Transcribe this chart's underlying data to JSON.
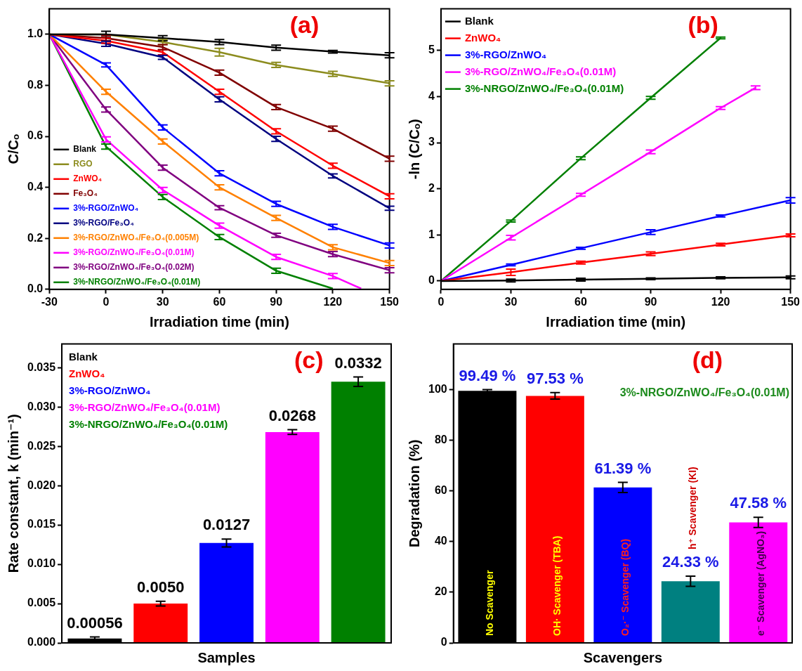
{
  "chart_data": [
    {
      "type": "line",
      "title": "(a)",
      "xlabel": "Irradiation time (min)",
      "ylabel": "C/Cₒ",
      "x": [
        -30,
        0,
        30,
        60,
        90,
        120,
        150
      ],
      "xlim": [
        -30,
        150
      ],
      "xticks": [
        -30,
        0,
        30,
        60,
        90,
        120,
        150
      ],
      "ylim": [
        0,
        1.1
      ],
      "yticks": [
        {
          "value": 0,
          "label": "0.0"
        },
        {
          "value": 0.2,
          "label": "0.2"
        },
        {
          "value": 0.4,
          "label": "0.4"
        },
        {
          "value": 0.6,
          "label": "0.6"
        },
        {
          "value": 0.8,
          "label": "0.8"
        },
        {
          "value": 1,
          "label": "1.0"
        }
      ],
      "legend": "bottom left",
      "series": [
        {
          "name": "Blank",
          "color": "#000000",
          "values": [
            1,
            1.0,
            0.985,
            0.97,
            0.948,
            0.932,
            0.918
          ],
          "errors": [
            null,
            0.012,
            0.01,
            0.01,
            0.01,
            0.005,
            0.01
          ]
        },
        {
          "name": "RGO",
          "color": "#8c8c1e",
          "values": [
            1,
            1.0,
            0.97,
            0.93,
            0.88,
            0.845,
            0.808
          ],
          "errors": [
            null,
            null,
            0.01,
            0.015,
            0.01,
            0.01,
            0.01
          ]
        },
        {
          "name": "ZnWO₄",
          "color": "#ff0000",
          "values": [
            1,
            0.975,
            0.93,
            0.775,
            0.62,
            0.485,
            0.365
          ],
          "errors": [
            null,
            0.01,
            0.01,
            0.01,
            0.01,
            0.01,
            0.01
          ]
        },
        {
          "name": "Fe₃O₄",
          "color": "#800000",
          "values": [
            1,
            0.985,
            0.95,
            0.85,
            0.715,
            0.63,
            0.512
          ],
          "errors": [
            null,
            0.01,
            0.01,
            0.01,
            0.01,
            0.01,
            0.01
          ]
        },
        {
          "name": "3%-RGO/ZnWO₄",
          "color": "#0000ff",
          "values": [
            1,
            0.88,
            0.635,
            0.455,
            0.335,
            0.245,
            0.172
          ],
          "errors": [
            null,
            0.008,
            0.01,
            0.01,
            0.01,
            0.01,
            0.01
          ]
        },
        {
          "name": "3%-RGO/Fe₃O₄",
          "color": "#000080",
          "values": [
            1,
            0.963,
            0.91,
            0.745,
            0.59,
            0.445,
            0.318
          ],
          "errors": [
            null,
            0.01,
            0.008,
            0.01,
            0.01,
            0.008,
            0.008
          ]
        },
        {
          "name": "3%-RGO/ZnWO₄/Fe₃O₄(0.005M)",
          "color": "#ff8000",
          "values": [
            1,
            0.775,
            0.58,
            0.4,
            0.28,
            0.165,
            0.103
          ],
          "errors": [
            null,
            0.01,
            0.01,
            0.01,
            0.01,
            0.01,
            0.01
          ]
        },
        {
          "name": "3%-RGO/ZnWO₄/Fe₃O₄(0.01M)",
          "color": "#ff00ff",
          "x": [
            -30,
            0,
            30,
            60,
            90,
            120,
            135
          ],
          "values": [
            1,
            0.588,
            0.39,
            0.25,
            0.127,
            0.052,
            0.003
          ],
          "errors": [
            null,
            0.01,
            0.01,
            0.01,
            0.01,
            0.01,
            null
          ]
        },
        {
          "name": "3%-RGO/ZnWO₄/Fe₃O₄(0.02M)",
          "color": "#800080",
          "values": [
            1,
            0.705,
            0.477,
            0.32,
            0.212,
            0.138,
            0.075
          ],
          "errors": [
            null,
            0.01,
            0.01,
            0.008,
            0.008,
            0.01,
            0.01
          ]
        },
        {
          "name": "3%-NRGO/ZnWO₄/Fe₃O₄(0.01M)",
          "color": "#008000",
          "x": [
            -30,
            0,
            30,
            60,
            90,
            120
          ],
          "values": [
            1,
            0.56,
            0.362,
            0.205,
            0.073,
            0.003
          ],
          "errors": [
            null,
            0.01,
            0.01,
            0.01,
            0.01,
            null
          ]
        }
      ]
    },
    {
      "type": "line",
      "title": "(b)",
      "xlabel": "Irradiation time (min)",
      "ylabel": "-ln (C/Cₒ)",
      "x": [
        0,
        30,
        60,
        90,
        120,
        150
      ],
      "xlim": [
        0,
        150
      ],
      "xticks": [
        0,
        30,
        60,
        90,
        120,
        150
      ],
      "ylim": [
        -0.18,
        5.9
      ],
      "yticks": [
        0,
        1,
        2,
        3,
        4,
        5
      ],
      "legend": "top left",
      "series": [
        {
          "name": "Blank",
          "color": "#000000",
          "values": [
            0,
            0.01,
            0.03,
            0.05,
            0.07,
            0.08
          ],
          "errors": [
            null,
            0.03,
            0.03,
            0.02,
            0.02,
            0.03
          ]
        },
        {
          "name": "ZnWO₄",
          "color": "#ff0000",
          "values": [
            0,
            0.19,
            0.4,
            0.59,
            0.79,
            0.99
          ],
          "errors": [
            null,
            0.07,
            0.03,
            0.04,
            0.03,
            0.03
          ]
        },
        {
          "name": "3%-RGO/ZnWO₄",
          "color": "#0000ff",
          "values": [
            0,
            0.35,
            0.71,
            1.06,
            1.41,
            1.75
          ],
          "errors": [
            null,
            0.02,
            0.02,
            0.05,
            0.02,
            0.06
          ]
        },
        {
          "name": "3%-RGO/ZnWO₄/Fe₃O₄(0.01M)",
          "color": "#ff00ff",
          "x": [
            0,
            30,
            60,
            90,
            120,
            135
          ],
          "values": [
            0,
            0.94,
            1.87,
            2.8,
            3.75,
            4.19
          ],
          "errors": [
            null,
            0.05,
            0.03,
            0.04,
            0.03,
            0.04
          ]
        },
        {
          "name": "3%-NRGO/ZnWO₄/Fe₃O₄(0.01M)",
          "color": "#008000",
          "x": [
            0,
            30,
            60,
            90,
            120
          ],
          "values": [
            0,
            1.3,
            2.66,
            3.97,
            5.27
          ],
          "errors": [
            null,
            0.02,
            0.03,
            0.03,
            0.02
          ]
        }
      ]
    },
    {
      "type": "bar",
      "title": "(c)",
      "xlabel": "Samples",
      "ylabel": "Rate constant, k (min⁻¹)",
      "categories": [
        null,
        null,
        null,
        null,
        null
      ],
      "tick_labels": "y",
      "ylim": [
        0,
        0.038
      ],
      "yticks": [
        {
          "value": 0,
          "label": "0.000"
        },
        {
          "value": 0.005,
          "label": "0.005"
        },
        {
          "value": 0.01,
          "label": "0.010"
        },
        {
          "value": 0.015,
          "label": "0.015"
        },
        {
          "value": 0.02,
          "label": "0.020"
        },
        {
          "value": 0.025,
          "label": "0.025"
        },
        {
          "value": 0.03,
          "label": "0.030"
        },
        {
          "value": 0.035,
          "label": "0.035"
        }
      ],
      "values": [
        0.00056,
        0.005,
        0.0127,
        0.0268,
        0.0332
      ],
      "colors": [
        "#000000",
        "#ff0000",
        "#0000ff",
        "#ff00ff",
        "#008000"
      ],
      "errors": [
        0.0002,
        0.0003,
        0.0005,
        0.0003,
        0.0006
      ],
      "value_labels": [
        "0.00056",
        "0.0050",
        "0.0127",
        "0.0268",
        "0.0332"
      ],
      "annotations": [
        "Blank",
        "ZnWO₄",
        "3%-RGO/ZnWO₄",
        "3%-RGO/ZnWO₄/Fe₃O₄(0.01M)",
        "3%-NRGO/ZnWO₄/Fe₃O₄(0.01M)"
      ]
    },
    {
      "type": "bar",
      "title": "(d)",
      "xlabel": "Scavengers",
      "ylabel": "Degradation (%)",
      "categories": [
        "No Scavenger",
        "OH· Scavenger (TBA)",
        "O₂·⁻ Scavenger (BQ)",
        "h⁺ Scavenger (KI)",
        "e⁻ Scavenger (AgNO₃)"
      ],
      "tick_labels": "y",
      "ylim": [
        0,
        118
      ],
      "yticks": [
        0,
        20,
        40,
        60,
        80,
        100
      ],
      "values": [
        99.49,
        97.53,
        61.39,
        24.33,
        47.58
      ],
      "colors": [
        "#000000",
        "#ff0000",
        "#0000ff",
        "#008080",
        "#ff00ff"
      ],
      "errors": [
        0.5,
        1.3,
        2,
        2,
        2
      ],
      "value_labels": [
        "99.49 %",
        "97.53 %",
        "61.39 %",
        "24.33 %",
        "47.58 %"
      ],
      "annotations": [
        "3%-NRGO/ZnWO₄/Fe₃O₄(0.01M)"
      ]
    }
  ]
}
